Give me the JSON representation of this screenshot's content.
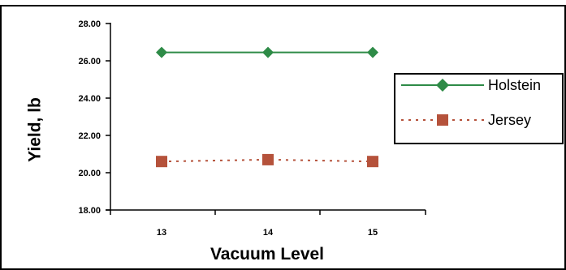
{
  "chart_data": {
    "type": "line",
    "x": [
      13,
      14,
      15
    ],
    "xlabel": "Vacuum Level",
    "ylabel": "Yield, lb",
    "ylim": [
      18,
      28
    ],
    "yticks": [
      18,
      20,
      22,
      24,
      26,
      28
    ],
    "ytick_labels": [
      "18.00",
      "20.00",
      "22.00",
      "24.00",
      "26.00",
      "28.00"
    ],
    "xtick_labels": [
      "13",
      "14",
      "15"
    ],
    "grid": false,
    "legend_position": "right",
    "series": [
      {
        "name": "Holstein",
        "values": [
          26.45,
          26.45,
          26.45
        ],
        "color": "#2e8b47",
        "style": "solid",
        "marker": "diamond"
      },
      {
        "name": "Jersey",
        "values": [
          20.6,
          20.7,
          20.6
        ],
        "color": "#b5523b",
        "style": "dotted",
        "marker": "square"
      }
    ]
  }
}
